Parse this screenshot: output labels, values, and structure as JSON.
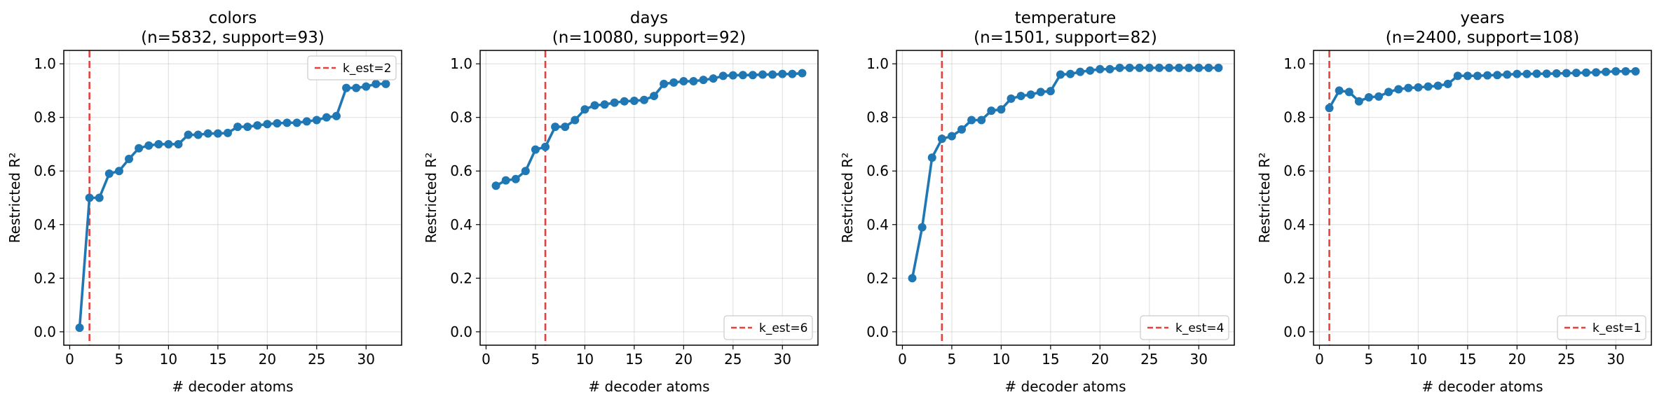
{
  "figure": {
    "shared_x": [
      1,
      2,
      3,
      4,
      5,
      6,
      7,
      8,
      9,
      10,
      11,
      12,
      13,
      14,
      15,
      16,
      17,
      18,
      19,
      20,
      21,
      22,
      23,
      24,
      25,
      26,
      27,
      28,
      29,
      30,
      31,
      32
    ],
    "xlabel": "# decoder atoms",
    "ylabel": "Restricted R²",
    "line_color": "#1f77b4",
    "ref_line_color": "#e8413c"
  },
  "chart_data": [
    {
      "type": "line",
      "title": "colors",
      "subtitle": "(n=5832, support=93)",
      "xlabel": "# decoder atoms",
      "ylabel": "Restricted R²",
      "xlim": [
        -0.6,
        33.6
      ],
      "ylim": [
        -0.05,
        1.05
      ],
      "xticks": [
        0,
        5,
        10,
        15,
        20,
        25,
        30
      ],
      "yticks": [
        0.0,
        0.2,
        0.4,
        0.6,
        0.8,
        1.0
      ],
      "grid": true,
      "legend": {
        "position": "upper-right",
        "label": "k_est=2"
      },
      "k_est": 2,
      "series": [
        {
          "values": [
            0.015,
            0.5,
            0.5,
            0.59,
            0.6,
            0.645,
            0.685,
            0.695,
            0.7,
            0.7,
            0.7,
            0.735,
            0.735,
            0.74,
            0.74,
            0.742,
            0.765,
            0.765,
            0.77,
            0.775,
            0.778,
            0.78,
            0.78,
            0.785,
            0.79,
            0.8,
            0.805,
            0.91,
            0.91,
            0.915,
            0.925,
            0.925
          ]
        }
      ]
    },
    {
      "type": "line",
      "title": "days",
      "subtitle": "(n=10080, support=92)",
      "xlabel": "# decoder atoms",
      "ylabel": "Restricted R²",
      "xlim": [
        -0.6,
        33.6
      ],
      "ylim": [
        -0.05,
        1.05
      ],
      "xticks": [
        0,
        5,
        10,
        15,
        20,
        25,
        30
      ],
      "yticks": [
        0.0,
        0.2,
        0.4,
        0.6,
        0.8,
        1.0
      ],
      "grid": true,
      "legend": {
        "position": "lower-right",
        "label": "k_est=6"
      },
      "k_est": 6,
      "series": [
        {
          "values": [
            0.545,
            0.565,
            0.57,
            0.6,
            0.68,
            0.69,
            0.765,
            0.765,
            0.79,
            0.83,
            0.845,
            0.848,
            0.855,
            0.86,
            0.862,
            0.865,
            0.88,
            0.925,
            0.93,
            0.935,
            0.935,
            0.94,
            0.945,
            0.955,
            0.957,
            0.958,
            0.958,
            0.96,
            0.96,
            0.962,
            0.962,
            0.965
          ]
        }
      ]
    },
    {
      "type": "line",
      "title": "temperature",
      "subtitle": "(n=1501, support=82)",
      "xlabel": "# decoder atoms",
      "ylabel": "Restricted R²",
      "xlim": [
        -0.6,
        33.6
      ],
      "ylim": [
        -0.05,
        1.05
      ],
      "xticks": [
        0,
        5,
        10,
        15,
        20,
        25,
        30
      ],
      "yticks": [
        0.0,
        0.2,
        0.4,
        0.6,
        0.8,
        1.0
      ],
      "grid": true,
      "legend": {
        "position": "lower-right",
        "label": "k_est=4"
      },
      "k_est": 4,
      "series": [
        {
          "values": [
            0.2,
            0.39,
            0.65,
            0.72,
            0.73,
            0.755,
            0.79,
            0.79,
            0.825,
            0.83,
            0.87,
            0.88,
            0.885,
            0.895,
            0.898,
            0.96,
            0.962,
            0.97,
            0.975,
            0.98,
            0.98,
            0.985,
            0.985,
            0.985,
            0.985,
            0.985,
            0.985,
            0.985,
            0.985,
            0.985,
            0.985,
            0.985
          ]
        }
      ]
    },
    {
      "type": "line",
      "title": "years",
      "subtitle": "(n=2400, support=108)",
      "xlabel": "# decoder atoms",
      "ylabel": "Restricted R²",
      "xlim": [
        -0.6,
        33.6
      ],
      "ylim": [
        -0.05,
        1.05
      ],
      "xticks": [
        0,
        5,
        10,
        15,
        20,
        25,
        30
      ],
      "yticks": [
        0.0,
        0.2,
        0.4,
        0.6,
        0.8,
        1.0
      ],
      "grid": true,
      "legend": {
        "position": "lower-right",
        "label": "k_est=1"
      },
      "k_est": 1,
      "series": [
        {
          "values": [
            0.835,
            0.9,
            0.895,
            0.86,
            0.875,
            0.878,
            0.895,
            0.905,
            0.91,
            0.912,
            0.915,
            0.918,
            0.925,
            0.955,
            0.955,
            0.955,
            0.957,
            0.958,
            0.96,
            0.962,
            0.962,
            0.963,
            0.963,
            0.964,
            0.965,
            0.966,
            0.967,
            0.968,
            0.97,
            0.972,
            0.972,
            0.972
          ]
        }
      ]
    }
  ]
}
